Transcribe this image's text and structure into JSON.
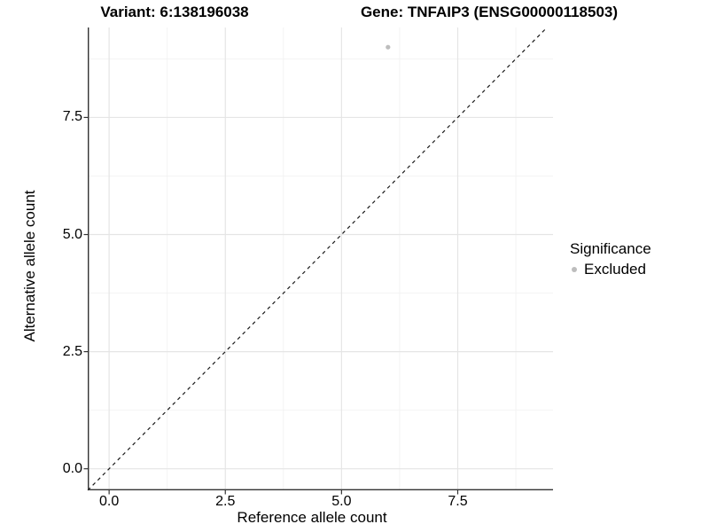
{
  "titles": {
    "variant": "Variant: 6:138196038",
    "gene": "Gene: TNFAIP3 (ENSG00000118503)"
  },
  "chart_data": {
    "type": "scatter",
    "xlabel": "Reference allele count",
    "ylabel": "Alternative allele count",
    "xlim": [
      -0.46,
      9.55
    ],
    "ylim": [
      -0.46,
      9.42
    ],
    "x_ticks": [
      0.0,
      2.5,
      5.0,
      7.5
    ],
    "y_ticks": [
      0.0,
      2.5,
      5.0,
      7.5
    ],
    "x_minor_ticks": [
      1.25,
      3.75,
      6.25,
      8.75
    ],
    "y_minor_ticks": [
      1.25,
      3.75,
      6.25,
      8.75
    ],
    "grid": true,
    "series": [
      {
        "name": "Excluded",
        "color": "#bdbdbd",
        "points": [
          {
            "x": 6,
            "y": 9
          }
        ]
      }
    ],
    "identity_line": {
      "type": "abline",
      "slope": 1,
      "intercept": 0,
      "style": "dashed",
      "color": "#1a1a1a"
    },
    "legend": {
      "title": "Significance",
      "position": "right",
      "items": [
        {
          "label": "Excluded",
          "color": "#bdbdbd"
        }
      ]
    }
  },
  "colors": {
    "background": "#ffffff",
    "grid_major": "#e5e5e5",
    "grid_minor": "#f2f2f2",
    "axis_line": "#333333",
    "tick_mark": "#333333",
    "text": "#000000"
  }
}
